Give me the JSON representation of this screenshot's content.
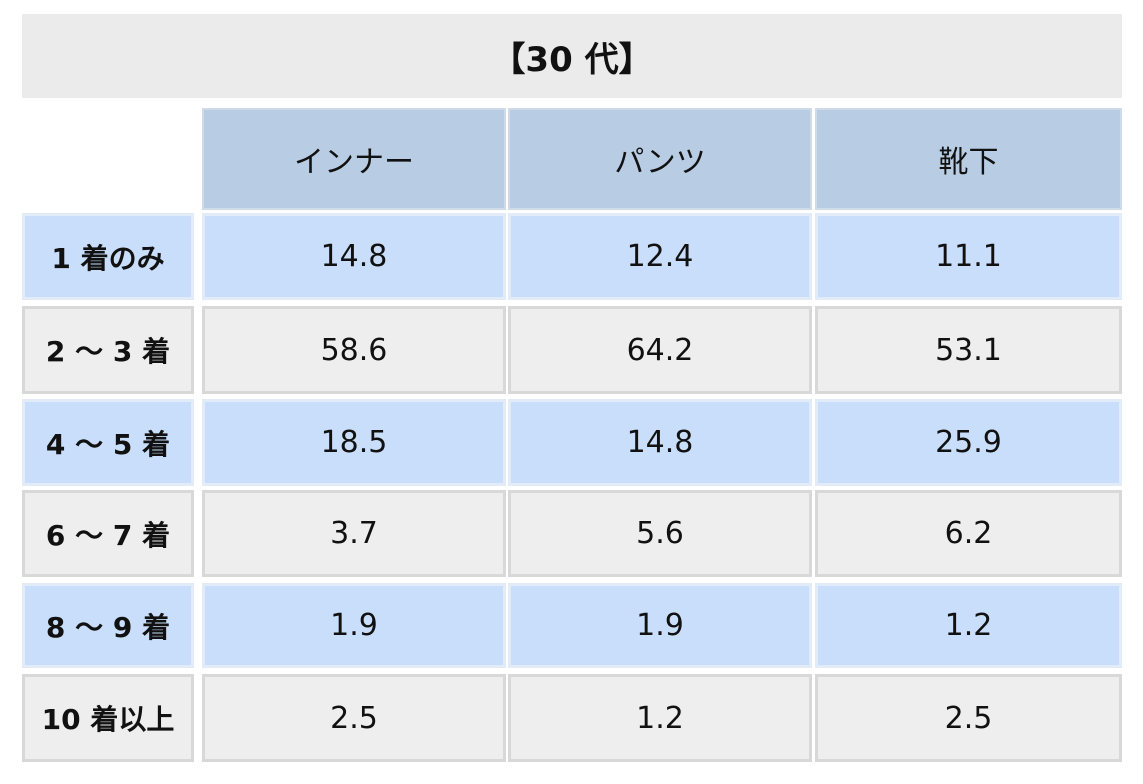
{
  "header": {
    "title": "【30 代】"
  },
  "table": {
    "columns": [
      "インナー",
      "パンツ",
      "靴下"
    ],
    "rows": [
      {
        "label": "1 着のみ",
        "values": [
          14.8,
          12.4,
          11.1
        ]
      },
      {
        "label": "2 ～ 3 着",
        "values": [
          58.6,
          64.2,
          53.1
        ]
      },
      {
        "label": "4 ～ 5 着",
        "values": [
          18.5,
          14.8,
          25.9
        ]
      },
      {
        "label": "6 ～ 7 着",
        "values": [
          3.7,
          5.6,
          6.2
        ]
      },
      {
        "label": "8 ～ 9 着",
        "values": [
          1.9,
          1.9,
          1.2
        ]
      },
      {
        "label": "10 着以上",
        "values": [
          2.5,
          1.2,
          2.5
        ]
      }
    ]
  }
}
